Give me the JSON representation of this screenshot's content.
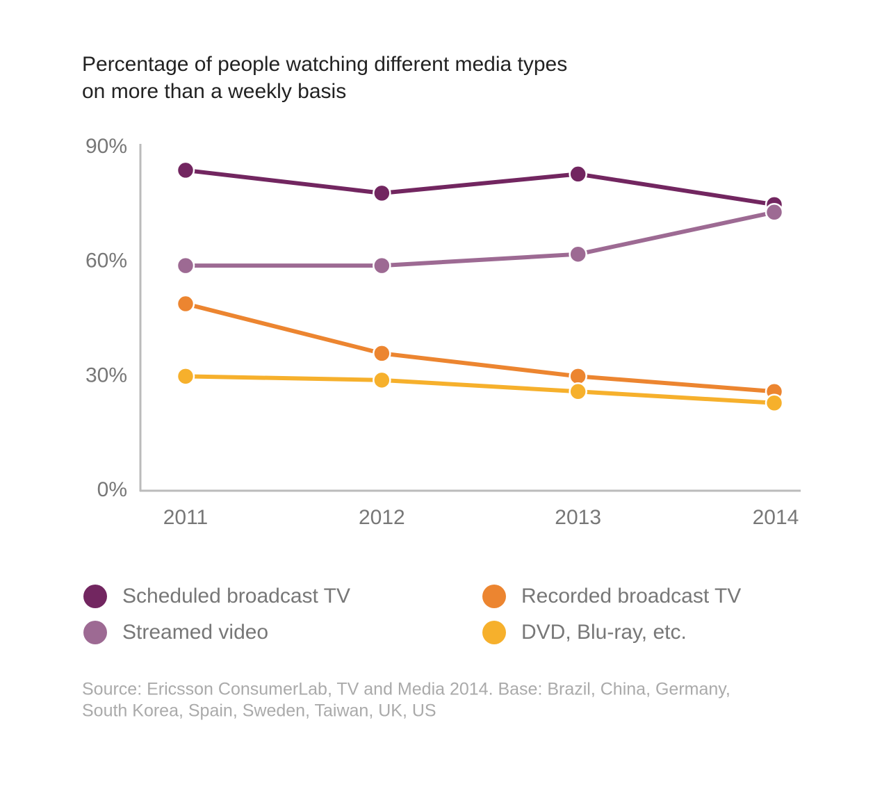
{
  "chart_data": {
    "type": "line",
    "title": [
      "Percentage of people watching different media types",
      "on more than a weekly basis"
    ],
    "categories": [
      "2011",
      "2012",
      "2013",
      "2014"
    ],
    "series": [
      {
        "name": "Scheduled broadcast TV",
        "color": "#722660",
        "values": [
          84,
          78,
          83,
          75
        ]
      },
      {
        "name": "Streamed video",
        "color": "#9d6a93",
        "values": [
          59,
          59,
          62,
          73
        ]
      },
      {
        "name": "Recorded broadcast TV",
        "color": "#ec8530",
        "values": [
          49,
          36,
          30,
          26
        ]
      },
      {
        "name": "DVD, Blu-ray, etc.",
        "color": "#f6b02c",
        "values": [
          30,
          29,
          26,
          23
        ]
      }
    ],
    "ylim": [
      0,
      90
    ],
    "yticks": [
      {
        "value": 0,
        "label": "0%"
      },
      {
        "value": 30,
        "label": "30%"
      },
      {
        "value": 60,
        "label": "60%"
      },
      {
        "value": 90,
        "label": "90%"
      }
    ],
    "source": [
      "Source: Ericsson ConsumerLab, TV and Media 2014. Base: Brazil, China, Germany,",
      "South Korea, Spain, Sweden, Taiwan, UK, US"
    ]
  }
}
